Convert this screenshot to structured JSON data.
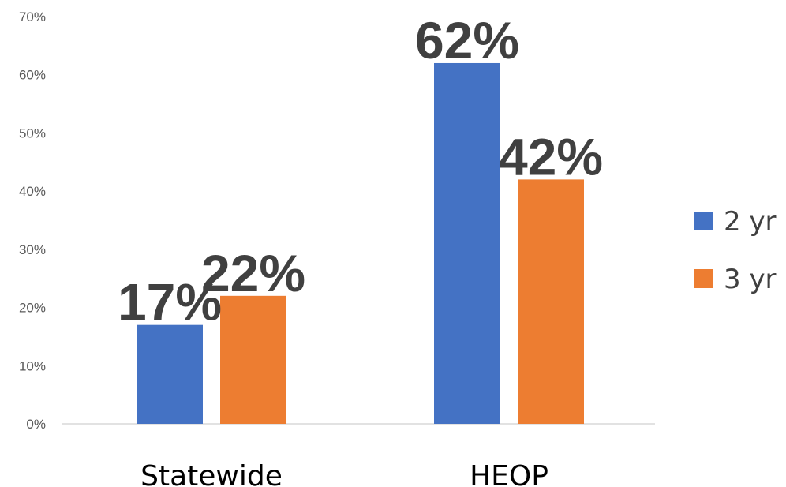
{
  "chart_data": {
    "type": "bar",
    "categories": [
      "Statewide",
      "HEOP"
    ],
    "series": [
      {
        "name": "2 yr",
        "values": [
          17,
          62
        ],
        "color": "#4472C4"
      },
      {
        "name": "3 yr",
        "values": [
          22,
          42
        ],
        "color": "#ED7D31"
      }
    ],
    "data_labels": [
      [
        "17%",
        "62%"
      ],
      [
        "22%",
        "42%"
      ]
    ],
    "ylim": [
      0,
      70
    ],
    "y_ticks": [
      0,
      10,
      20,
      30,
      40,
      50,
      60,
      70
    ],
    "y_tick_labels": [
      "0%",
      "10%",
      "20%",
      "30%",
      "40%",
      "50%",
      "60%",
      "70%"
    ],
    "title": "",
    "xlabel": "",
    "ylabel": "",
    "grid": false,
    "legend": "right"
  }
}
